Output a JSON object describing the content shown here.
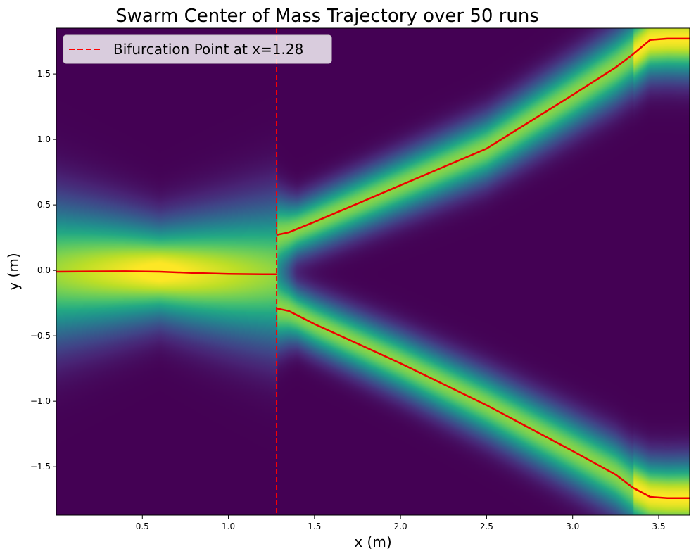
{
  "chart_data": {
    "type": "heatmap",
    "title": "Swarm Center of Mass Trajectory over 50 runs",
    "xlabel": "x (m)",
    "ylabel": "y (m)",
    "xlim": [
      0.0,
      3.68
    ],
    "ylim": [
      -1.87,
      1.85
    ],
    "xticks": [
      0.5,
      1.0,
      1.5,
      2.0,
      2.5,
      3.0,
      3.5
    ],
    "xtick_labels": [
      "0.5",
      "1.0",
      "1.5",
      "2.0",
      "2.5",
      "3.0",
      "3.5"
    ],
    "yticks": [
      -1.5,
      -1.0,
      -0.5,
      0.0,
      0.5,
      1.0,
      1.5
    ],
    "ytick_labels": [
      "−1.5",
      "−1.0",
      "−0.5",
      "0.0",
      "0.5",
      "1.0",
      "1.5"
    ],
    "colormap": "viridis",
    "grid": false,
    "legend": {
      "placement": "top-left",
      "entries": [
        {
          "label": "Bifurcation Point at x=1.28",
          "color": "#ff0000",
          "style": "dashed"
        }
      ]
    },
    "bifurcation_x": 1.28,
    "series": [
      {
        "role": "pre-bifurcation mean path",
        "color": "#ee0000",
        "points": [
          [
            0.0,
            -0.01
          ],
          [
            0.2,
            -0.008
          ],
          [
            0.4,
            -0.007
          ],
          [
            0.6,
            -0.01
          ],
          [
            0.8,
            -0.02
          ],
          [
            1.0,
            -0.027
          ],
          [
            1.2,
            -0.03
          ],
          [
            1.28,
            -0.03
          ]
        ]
      },
      {
        "role": "upper branch",
        "color": "#ee0000",
        "points": [
          [
            1.28,
            0.27
          ],
          [
            1.35,
            0.29
          ],
          [
            1.5,
            0.37
          ],
          [
            1.75,
            0.51
          ],
          [
            2.0,
            0.65
          ],
          [
            2.5,
            0.93
          ],
          [
            3.0,
            1.34
          ],
          [
            3.25,
            1.55
          ],
          [
            3.35,
            1.65
          ],
          [
            3.45,
            1.76
          ],
          [
            3.55,
            1.77
          ],
          [
            3.68,
            1.77
          ]
        ]
      },
      {
        "role": "lower branch",
        "color": "#ee0000",
        "points": [
          [
            1.28,
            -0.29
          ],
          [
            1.35,
            -0.31
          ],
          [
            1.5,
            -0.41
          ],
          [
            1.75,
            -0.56
          ],
          [
            2.0,
            -0.71
          ],
          [
            2.5,
            -1.03
          ],
          [
            3.0,
            -1.38
          ],
          [
            3.25,
            -1.56
          ],
          [
            3.35,
            -1.66
          ],
          [
            3.45,
            -1.73
          ],
          [
            3.55,
            -1.74
          ],
          [
            3.68,
            -1.74
          ]
        ]
      }
    ]
  }
}
